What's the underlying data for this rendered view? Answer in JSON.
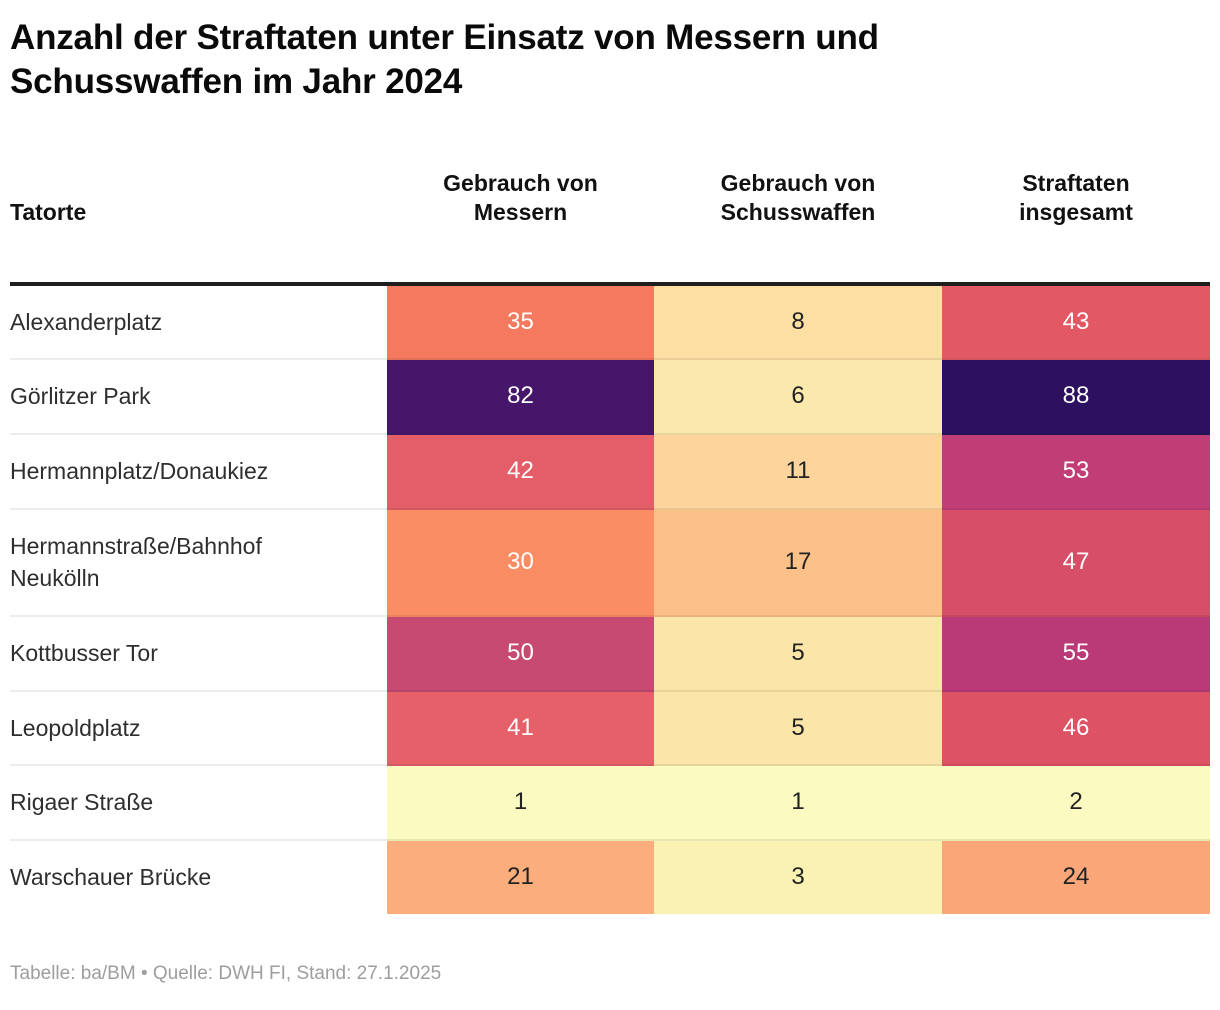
{
  "header": {
    "title": "Anzahl der Straftaten unter Einsatz von Messern und Schusswaffen im Jahr 2024"
  },
  "table": {
    "columns": [
      {
        "label": "Tatorte"
      },
      {
        "label": "Gebrauch von Messern"
      },
      {
        "label": "Gebrauch von Schusswaffen"
      },
      {
        "label": "Straftaten insgesamt"
      }
    ],
    "rows": [
      {
        "tatort": "Alexanderplatz",
        "messer": {
          "value": "35",
          "bg": "#f4795f",
          "fg": "#ffffff"
        },
        "schusswaffen": {
          "value": "8",
          "bg": "#fddfa3",
          "fg": "#222222"
        },
        "insgesamt": {
          "value": "43",
          "bg": "#e25964",
          "fg": "#ffffff"
        }
      },
      {
        "tatort": "Görlitzer Park",
        "messer": {
          "value": "82",
          "bg": "#451669",
          "fg": "#ffffff"
        },
        "schusswaffen": {
          "value": "6",
          "bg": "#fbe8ac",
          "fg": "#222222"
        },
        "insgesamt": {
          "value": "88",
          "bg": "#2b1160",
          "fg": "#ffffff"
        }
      },
      {
        "tatort": "Hermannplatz/Donaukiez",
        "messer": {
          "value": "42",
          "bg": "#e35e69",
          "fg": "#ffffff"
        },
        "schusswaffen": {
          "value": "11",
          "bg": "#fdd59c",
          "fg": "#222222"
        },
        "insgesamt": {
          "value": "53",
          "bg": "#c13d76",
          "fg": "#ffffff"
        }
      },
      {
        "tatort": "Hermannstraße/Bahnhof Neukölln",
        "messer": {
          "value": "30",
          "bg": "#fa8d63",
          "fg": "#ffffff"
        },
        "schusswaffen": {
          "value": "17",
          "bg": "#fcc089",
          "fg": "#222222"
        },
        "insgesamt": {
          "value": "47",
          "bg": "#d64e67",
          "fg": "#ffffff"
        }
      },
      {
        "tatort": "Kottbusser Tor",
        "messer": {
          "value": "50",
          "bg": "#c64a72",
          "fg": "#ffffff"
        },
        "schusswaffen": {
          "value": "5",
          "bg": "#fbe5a8",
          "fg": "#222222"
        },
        "insgesamt": {
          "value": "55",
          "bg": "#ba3a78",
          "fg": "#ffffff"
        }
      },
      {
        "tatort": "Leopoldplatz",
        "messer": {
          "value": "41",
          "bg": "#e6606a",
          "fg": "#ffffff"
        },
        "schusswaffen": {
          "value": "5",
          "bg": "#fbe5a8",
          "fg": "#222222"
        },
        "insgesamt": {
          "value": "46",
          "bg": "#dd5264",
          "fg": "#ffffff"
        }
      },
      {
        "tatort": "Rigaer Straße",
        "messer": {
          "value": "1",
          "bg": "#fafac1",
          "fg": "#222222"
        },
        "schusswaffen": {
          "value": "1",
          "bg": "#fafac1",
          "fg": "#222222"
        },
        "insgesamt": {
          "value": "2",
          "bg": "#fafac1",
          "fg": "#222222"
        }
      },
      {
        "tatort": "Warschauer Brücke",
        "messer": {
          "value": "21",
          "bg": "#fbad7c",
          "fg": "#222222"
        },
        "schusswaffen": {
          "value": "3",
          "bg": "#faf2b2",
          "fg": "#222222"
        },
        "insgesamt": {
          "value": "24",
          "bg": "#faa678",
          "fg": "#222222"
        }
      }
    ]
  },
  "footer": {
    "credit": "Tabelle: ba/BM • Quelle: DWH FI, Stand: 27.1.2025"
  },
  "colors": {
    "heatmap_low": "#fafac1",
    "heatmap_mid": "#e35e69",
    "heatmap_high": "#2b1160",
    "header_rule": "#1e1e1e",
    "credit_text": "#9d9d9d"
  },
  "chart_data": {
    "type": "table",
    "subtype": "heatmap",
    "title": "Anzahl der Straftaten unter Einsatz von Messern und Schusswaffen im Jahr 2024",
    "categories": [
      "Alexanderplatz",
      "Görlitzer Park",
      "Hermannplatz/Donaukiez",
      "Hermannstraße/Bahnhof Neukölln",
      "Kottbusser Tor",
      "Leopoldplatz",
      "Rigaer Straße",
      "Warschauer Brücke"
    ],
    "series": [
      {
        "name": "Gebrauch von Messern",
        "values": [
          35,
          82,
          42,
          30,
          50,
          41,
          1,
          21
        ]
      },
      {
        "name": "Gebrauch von Schusswaffen",
        "values": [
          8,
          6,
          11,
          17,
          5,
          5,
          1,
          3
        ]
      },
      {
        "name": "Straftaten insgesamt",
        "values": [
          43,
          88,
          53,
          47,
          55,
          46,
          2,
          24
        ]
      }
    ],
    "value_range": [
      1,
      88
    ],
    "colormap": "magma reversed (low = pale yellow, high = dark purple)",
    "legend": "none",
    "source_note": "Tabelle: ba/BM • Quelle: DWH FI, Stand: 27.1.2025"
  }
}
